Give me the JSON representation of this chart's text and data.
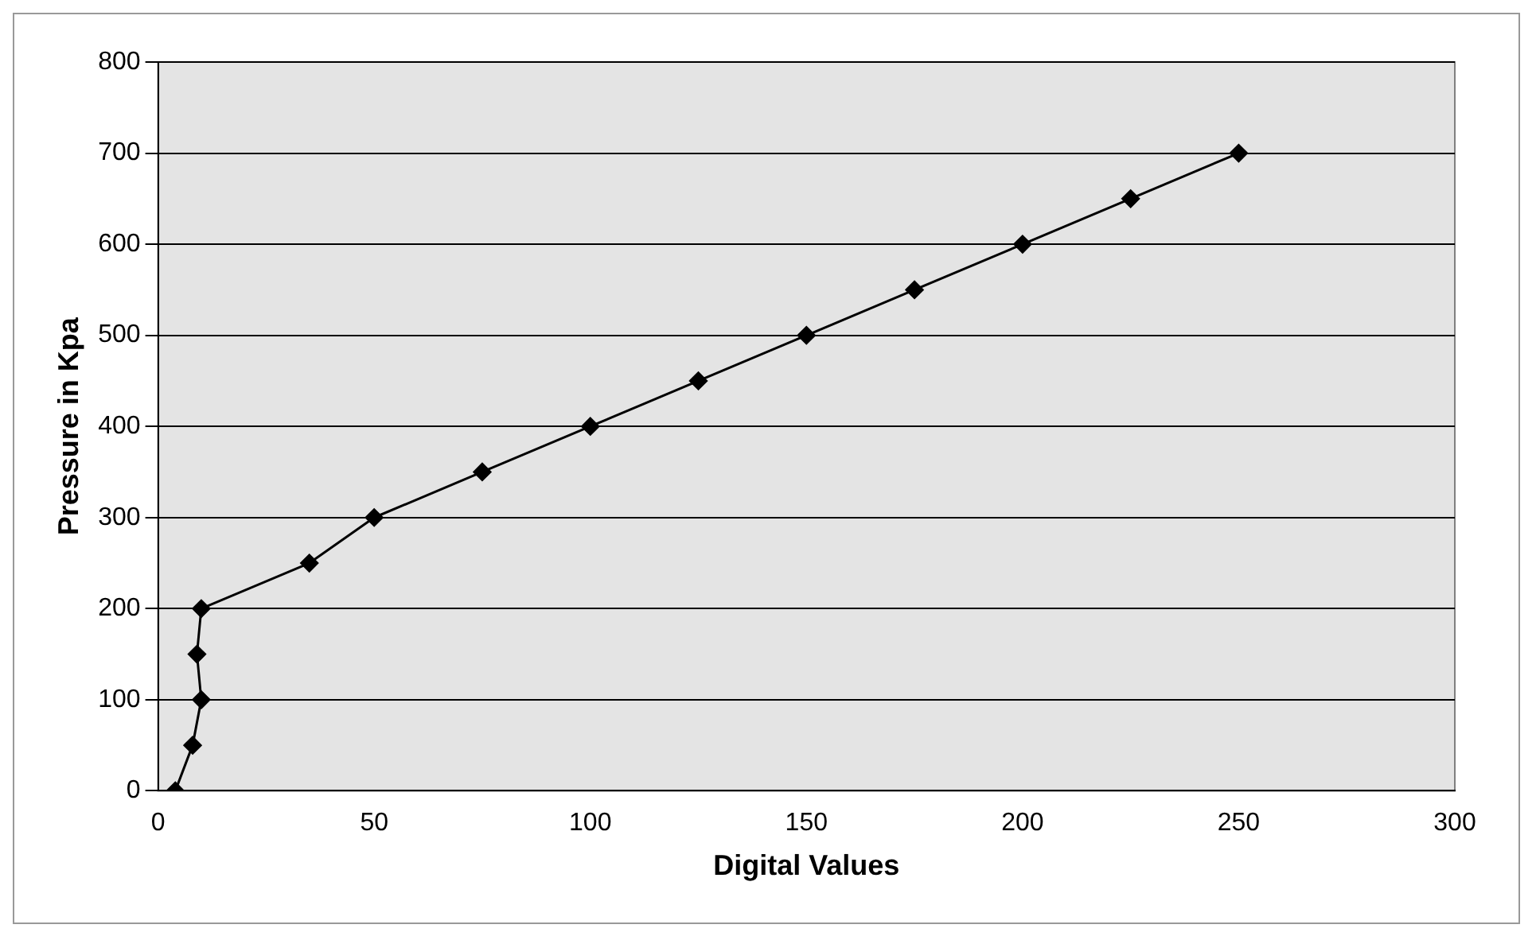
{
  "chart_data": {
    "type": "line",
    "xlabel": "Digital Values",
    "ylabel": "Pressure in Kpa",
    "xlim": [
      0,
      300
    ],
    "xticks": [
      0,
      50,
      100,
      150,
      200,
      250,
      300
    ],
    "ylim": [
      0,
      800
    ],
    "yticks": [
      0,
      100,
      200,
      300,
      400,
      500,
      600,
      700,
      800
    ],
    "grid": "y",
    "legend": false,
    "marker": "diamond",
    "line_style": "solid",
    "series": [
      {
        "color": "#000000",
        "x": [
          4,
          8,
          10,
          9,
          10,
          35,
          50,
          75,
          100,
          125,
          150,
          175,
          200,
          225,
          250
        ],
        "values": [
          0,
          50,
          100,
          150,
          200,
          250,
          300,
          350,
          400,
          450,
          500,
          550,
          600,
          650,
          700
        ]
      }
    ]
  }
}
